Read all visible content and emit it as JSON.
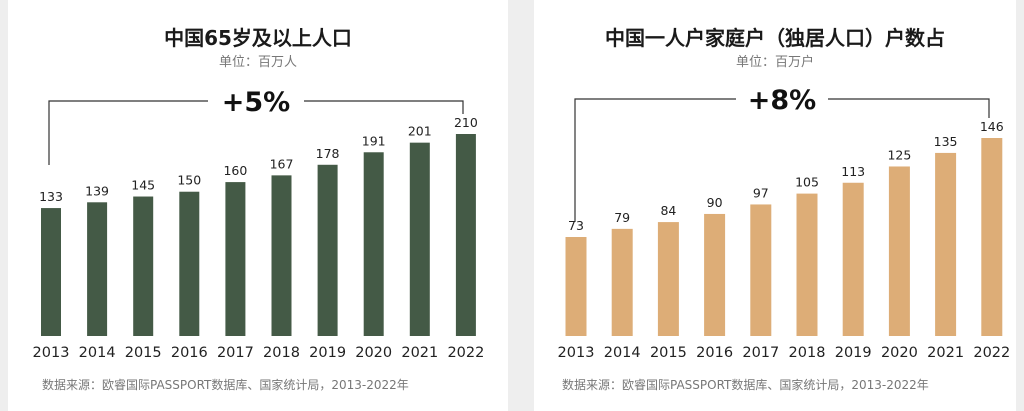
{
  "chart_data": [
    {
      "type": "bar",
      "title": "中国65岁及以上人口",
      "subtitle": "单位：百万人",
      "growth_label": "+5%",
      "categories": [
        "2013",
        "2014",
        "2015",
        "2016",
        "2017",
        "2018",
        "2019",
        "2020",
        "2021",
        "2022"
      ],
      "values": [
        133,
        139,
        145,
        150,
        160,
        167,
        178,
        191,
        201,
        210
      ],
      "ylim": [
        0,
        210
      ],
      "grid": false,
      "color": "#445a46",
      "source": "数据来源：欧睿国际PASSPORT数据库、国家统计局，2013-2022年"
    },
    {
      "type": "bar",
      "title": "中国一人户家庭户（独居人口）户数占",
      "subtitle": "单位：百万户",
      "growth_label": "+8%",
      "categories": [
        "2013",
        "2014",
        "2015",
        "2016",
        "2017",
        "2018",
        "2019",
        "2020",
        "2021",
        "2022"
      ],
      "values": [
        73,
        79,
        84,
        90,
        97,
        105,
        113,
        125,
        135,
        146
      ],
      "ylim": [
        0,
        146
      ],
      "grid": false,
      "color": "#ddad77",
      "source": "数据来源：欧睿国际PASSPORT数据库、国家统计局，2013-2022年"
    }
  ]
}
